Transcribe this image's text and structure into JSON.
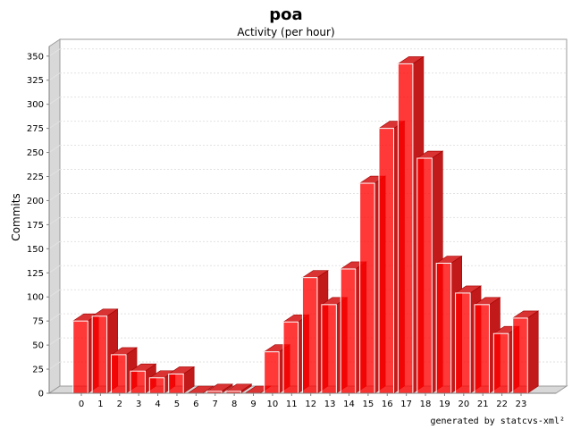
{
  "chart_data": {
    "type": "bar",
    "title": "poa",
    "subtitle": "Activity (per hour)",
    "xlabel": "",
    "ylabel": "Commits",
    "ylim": [
      0,
      360
    ],
    "yticks": [
      0,
      25,
      50,
      75,
      100,
      125,
      150,
      175,
      200,
      225,
      250,
      275,
      300,
      325,
      350
    ],
    "categories": [
      "0",
      "1",
      "2",
      "3",
      "4",
      "5",
      "6",
      "7",
      "8",
      "9",
      "10",
      "11",
      "12",
      "13",
      "14",
      "15",
      "16",
      "17",
      "18",
      "19",
      "20",
      "21",
      "22",
      "23"
    ],
    "values": [
      75,
      80,
      40,
      23,
      16,
      20,
      0,
      2,
      2,
      0,
      43,
      74,
      120,
      92,
      129,
      218,
      275,
      342,
      244,
      135,
      104,
      92,
      62,
      78
    ],
    "bar_color": "#ff0000",
    "grid": true
  },
  "footer": "generated by statcvs-xml²"
}
